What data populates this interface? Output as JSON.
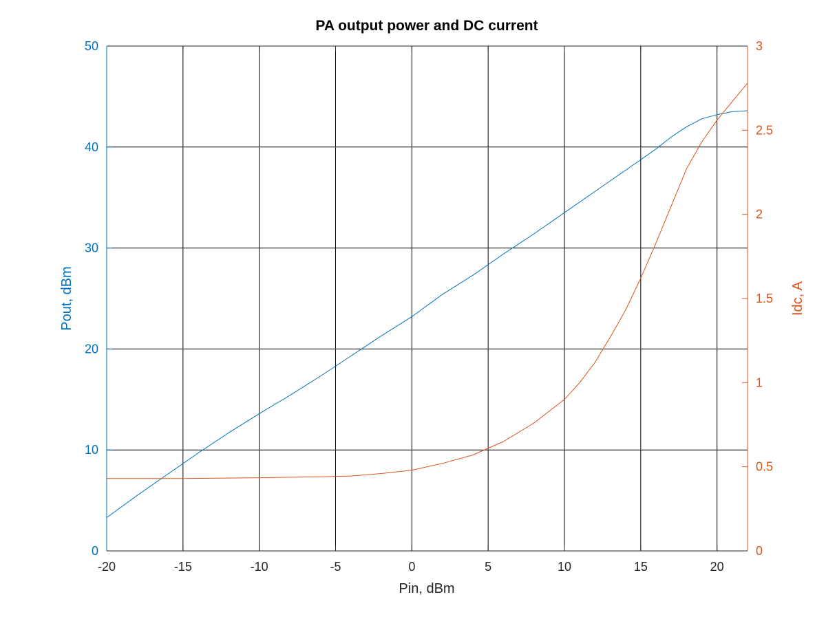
{
  "chart_data": {
    "type": "line",
    "title": "PA output power and DC current",
    "xlabel": "Pin, dBm",
    "ylabel_left": "Pout, dBm",
    "ylabel_right": "Idc, A",
    "xlim": [
      -20,
      22
    ],
    "ylim_left": [
      0,
      50
    ],
    "ylim_right": [
      0,
      3
    ],
    "xticks": [
      -20,
      -15,
      -10,
      -5,
      0,
      5,
      10,
      15,
      20
    ],
    "yticks_left": [
      0,
      10,
      20,
      30,
      40,
      50
    ],
    "yticks_right": [
      "0",
      "0.5",
      "1",
      "1.5",
      "2",
      "2.5",
      "3"
    ],
    "grid": true,
    "colors": {
      "left_axis": "#0072BD",
      "right_axis": "#D95319",
      "grid": "#000000"
    },
    "series": [
      {
        "axis": "left",
        "color": "#0072BD",
        "x": [
          -20,
          -18,
          -16,
          -14,
          -12,
          -10,
          -8,
          -6,
          -4,
          -2,
          0,
          2,
          4,
          6,
          8,
          10,
          12,
          14,
          16,
          17,
          18,
          19,
          20,
          21,
          22
        ],
        "y": [
          3.3,
          5.5,
          7.6,
          9.7,
          11.7,
          13.6,
          15.4,
          17.3,
          19.3,
          21.3,
          23.2,
          25.4,
          27.3,
          29.4,
          31.4,
          33.5,
          35.6,
          37.7,
          39.8,
          41.0,
          42.0,
          42.8,
          43.2,
          43.5,
          43.6
        ]
      },
      {
        "axis": "right",
        "color": "#D95319",
        "x": [
          -20,
          -15,
          -10,
          -6,
          -4,
          -2,
          0,
          2,
          4,
          6,
          8,
          9,
          10,
          11,
          12,
          13,
          14,
          15,
          16,
          17,
          18,
          19,
          20,
          21,
          22
        ],
        "y": [
          0.43,
          0.43,
          0.435,
          0.44,
          0.445,
          0.46,
          0.48,
          0.52,
          0.57,
          0.65,
          0.76,
          0.83,
          0.9,
          1.0,
          1.12,
          1.27,
          1.43,
          1.62,
          1.83,
          2.05,
          2.27,
          2.43,
          2.56,
          2.67,
          2.78
        ]
      }
    ]
  }
}
